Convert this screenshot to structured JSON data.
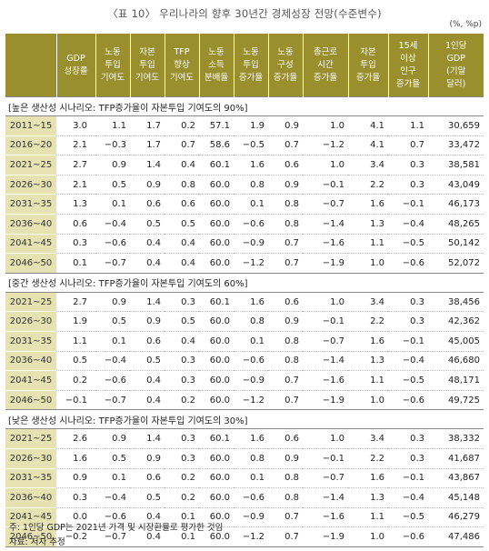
{
  "title": "〈표 10〉 우리나라의 향후 30년간 경제성장 전망(수준변수)",
  "unit": "(%, %p)",
  "headers": [
    "",
    "GDP\n성장률",
    "노동\n투입\n기여도",
    "자본\n투입\n기여도",
    "TFP\n향상\n기여도",
    "노동\n소득\n분배율",
    "노동\n투입\n증가율",
    "노동\n구성\n증가율",
    "총근로\n시간\n증가율",
    "자본\n투입\n증가율",
    "15세\n이상\n인구\n증가율",
    "1인당\nGDP\n(기말\n달러)"
  ],
  "sections": [
    {
      "label": "[높은 생산성 시나리오: TFP증가율이 자본투입 기여도의 90%]",
      "rows": [
        [
          "2011~15",
          "3.0",
          "1.1",
          "1.7",
          "0.2",
          "57.1",
          "1.9",
          "0.9",
          "1.0",
          "4.1",
          "1.1",
          "30,659"
        ],
        [
          "2016~20",
          "2.1",
          "−0.3",
          "1.7",
          "0.7",
          "58.6",
          "−0.5",
          "0.7",
          "−1.2",
          "4.1",
          "0.7",
          "33,472"
        ],
        [
          "2021~25",
          "2.7",
          "0.9",
          "1.4",
          "0.4",
          "60.1",
          "1.6",
          "0.6",
          "1.0",
          "3.4",
          "0.3",
          "38,581"
        ],
        [
          "2026~30",
          "2.1",
          "0.5",
          "0.9",
          "0.8",
          "60.0",
          "0.8",
          "0.9",
          "−0.1",
          "2.2",
          "0.3",
          "43,049"
        ],
        [
          "2031~35",
          "1.3",
          "0.1",
          "0.6",
          "0.6",
          "60.0",
          "0.1",
          "0.8",
          "−0.7",
          "1.6",
          "−0.1",
          "46,173"
        ],
        [
          "2036~40",
          "0.6",
          "−0.4",
          "0.5",
          "0.5",
          "60.0",
          "−0.6",
          "0.8",
          "−1.4",
          "1.3",
          "−0.4",
          "48,265"
        ],
        [
          "2041~45",
          "0.3",
          "−0.6",
          "0.4",
          "0.4",
          "60.0",
          "−0.9",
          "0.7",
          "−1.6",
          "1.1",
          "−0.5",
          "50,142"
        ],
        [
          "2046~50",
          "0.1",
          "−0.7",
          "0.4",
          "0.4",
          "60.0",
          "−1.2",
          "0.7",
          "−1.9",
          "1.0",
          "−0.6",
          "52,072"
        ]
      ]
    },
    {
      "label": "[중간 생산성 시나리오: TFP증가율이 자본투입 기여도의 60%]",
      "rows": [
        [
          "2021~25",
          "2.7",
          "0.9",
          "1.4",
          "0.3",
          "60.1",
          "1.6",
          "0.6",
          "1.0",
          "3.4",
          "0.3",
          "38,456"
        ],
        [
          "2026~30",
          "1.9",
          "0.5",
          "0.9",
          "0.5",
          "60.0",
          "0.8",
          "0.9",
          "−0.1",
          "2.2",
          "0.3",
          "42,362"
        ],
        [
          "2031~35",
          "1.1",
          "0.1",
          "0.6",
          "0.4",
          "60.0",
          "0.1",
          "0.8",
          "−0.7",
          "1.6",
          "−0.1",
          "45,005"
        ],
        [
          "2036~40",
          "0.5",
          "−0.4",
          "0.5",
          "0.3",
          "60.0",
          "−0.6",
          "0.8",
          "−1.4",
          "1.3",
          "−0.4",
          "46,680"
        ],
        [
          "2041~45",
          "0.2",
          "−0.6",
          "0.4",
          "0.3",
          "60.0",
          "−0.9",
          "0.7",
          "−1.6",
          "1.1",
          "−0.5",
          "48,171"
        ],
        [
          "2046~50",
          "−0.1",
          "−0.7",
          "0.4",
          "0.2",
          "60.0",
          "−1.2",
          "0.7",
          "−1.9",
          "1.0",
          "−0.6",
          "49,725"
        ]
      ]
    },
    {
      "label": "[낮은 생산성 시나리오: TFP증가율이 자본투입 기여도의 30%]",
      "rows": [
        [
          "2021~25",
          "2.6",
          "0.9",
          "1.4",
          "0.3",
          "60.1",
          "1.6",
          "0.6",
          "1.0",
          "3.4",
          "0.3",
          "38,332"
        ],
        [
          "2026~30",
          "1.6",
          "0.5",
          "0.9",
          "0.3",
          "60.0",
          "0.8",
          "0.9",
          "−0.1",
          "2.2",
          "0.3",
          "41,687"
        ],
        [
          "2031~35",
          "0.9",
          "0.1",
          "0.6",
          "0.2",
          "60.0",
          "0.1",
          "0.8",
          "−0.7",
          "1.6",
          "−0.1",
          "43,867"
        ],
        [
          "2036~40",
          "0.3",
          "−0.4",
          "0.5",
          "0.2",
          "60.0",
          "−0.6",
          "0.8",
          "−1.4",
          "1.3",
          "−0.4",
          "45,148"
        ],
        [
          "2041~45",
          "0.0",
          "−0.6",
          "0.4",
          "0.1",
          "60.0",
          "−0.9",
          "0.7",
          "−1.6",
          "1.1",
          "−0.5",
          "46,279"
        ],
        [
          "2046~50",
          "−0.2",
          "−0.7",
          "0.4",
          "0.1",
          "60.0",
          "−1.2",
          "0.7",
          "−1.9",
          "1.0",
          "−0.6",
          "47,486"
        ]
      ]
    }
  ],
  "notes": [
    "주: 1인당 GDP는 2021년 가격 및 시장환율로 평가한 것임",
    "자료: 저자 추정"
  ]
}
